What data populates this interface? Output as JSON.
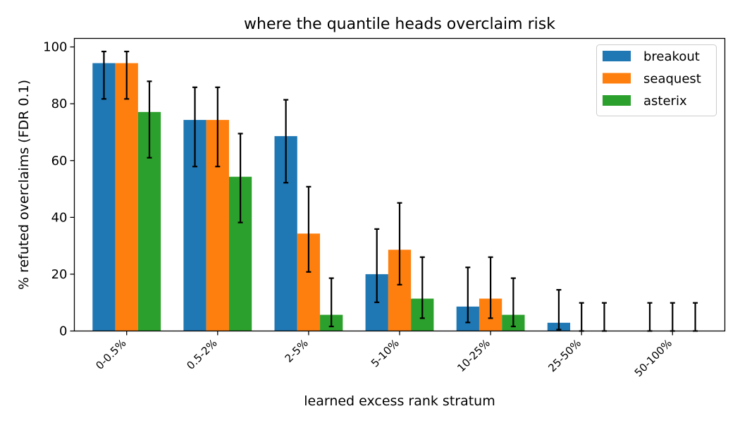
{
  "chart_data": {
    "type": "bar",
    "title": "where the quantile heads overclaim risk",
    "xlabel": "learned excess rank stratum",
    "ylabel": "% refuted overclaims (FDR 0.1)",
    "ylim": [
      0,
      103
    ],
    "yticks": [
      0,
      20,
      40,
      60,
      80,
      100
    ],
    "grid": false,
    "legend_position": "top-right",
    "categories": [
      "0-0.5%",
      "0.5-2%",
      "2-5%",
      "5-10%",
      "10-25%",
      "25-50%",
      "50-100%"
    ],
    "series": [
      {
        "name": "breakout",
        "color": "#1f77b4",
        "values": [
          94.3,
          74.3,
          68.6,
          20.0,
          8.6,
          2.9,
          0
        ],
        "err_low": [
          81.7,
          57.9,
          52.2,
          10.1,
          3.0,
          0.5,
          0
        ],
        "err_high": [
          98.4,
          85.8,
          81.4,
          35.9,
          22.4,
          14.5,
          9.9
        ]
      },
      {
        "name": "seaquest",
        "color": "#ff7f0e",
        "values": [
          94.3,
          74.3,
          34.3,
          28.6,
          11.4,
          0,
          0
        ],
        "err_low": [
          81.7,
          57.9,
          20.8,
          16.3,
          4.5,
          0,
          0
        ],
        "err_high": [
          98.4,
          85.8,
          50.8,
          45.1,
          26.0,
          9.9,
          9.9
        ]
      },
      {
        "name": "asterix",
        "color": "#2ca02c",
        "values": [
          77.1,
          54.3,
          5.7,
          11.4,
          5.7,
          0,
          0
        ],
        "err_low": [
          61.0,
          38.2,
          1.6,
          4.5,
          1.6,
          0,
          0
        ],
        "err_high": [
          87.9,
          69.5,
          18.6,
          26.0,
          18.6,
          9.9,
          9.9
        ]
      }
    ]
  }
}
